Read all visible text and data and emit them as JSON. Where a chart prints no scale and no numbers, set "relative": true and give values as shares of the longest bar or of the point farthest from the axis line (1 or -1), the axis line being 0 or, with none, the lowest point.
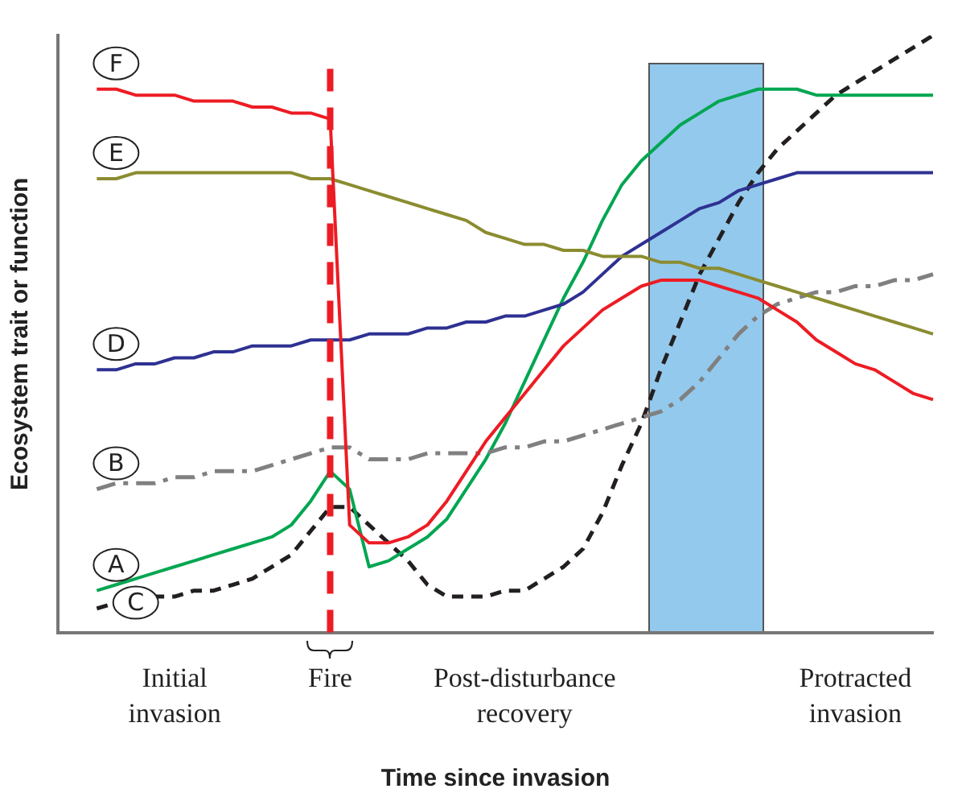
{
  "chart_data": {
    "type": "line",
    "relative": true,
    "xlabel": "Time since invasion",
    "ylabel": "Ecosystem trait or function",
    "legend": "left",
    "marker": "none",
    "categories": [
      null,
      null,
      null,
      null,
      null,
      null,
      "Initial invasion",
      null,
      null,
      null,
      null,
      null,
      null,
      null,
      "Fire",
      null,
      null,
      null,
      null,
      null,
      null,
      null,
      null,
      null,
      "Post-disturbance recovery",
      null,
      null,
      null,
      null,
      null,
      null,
      null,
      null,
      null,
      null,
      null,
      null,
      null,
      null,
      null,
      null,
      "Protracted invasion",
      null,
      null,
      null,
      null
    ],
    "series": [
      {
        "name": "F",
        "color": "#ed1c24",
        "values": [
          null,
          null,
          0.91,
          0.91,
          0.9,
          0.9,
          0.9,
          0.89,
          0.89,
          0.89,
          0.88,
          0.88,
          0.87,
          0.87,
          0.86,
          0.18,
          0.15,
          0.15,
          0.16,
          0.18,
          0.22,
          0.27,
          0.32,
          0.36,
          0.4,
          0.44,
          0.48,
          0.51,
          0.54,
          0.56,
          0.58,
          0.59,
          0.59,
          0.59,
          0.58,
          0.57,
          0.56,
          0.54,
          0.52,
          0.49,
          0.47,
          0.45,
          0.44,
          0.42,
          0.4,
          0.39
        ]
      },
      {
        "name": "E",
        "color": "#8a8c30",
        "values": [
          null,
          null,
          0.76,
          0.76,
          0.77,
          0.77,
          0.77,
          0.77,
          0.77,
          0.77,
          0.77,
          0.77,
          0.77,
          0.76,
          0.76,
          0.75,
          0.74,
          0.73,
          0.72,
          0.71,
          0.7,
          0.69,
          0.67,
          0.66,
          0.65,
          0.65,
          0.64,
          0.64,
          0.63,
          0.63,
          0.63,
          0.62,
          0.62,
          0.61,
          0.61,
          0.6,
          0.59,
          0.58,
          0.57,
          0.56,
          0.55,
          0.54,
          0.53,
          0.52,
          0.51,
          0.5
        ]
      },
      {
        "name": "D",
        "color": "#2e3192",
        "values": [
          null,
          null,
          0.44,
          0.44,
          0.45,
          0.45,
          0.46,
          0.46,
          0.47,
          0.47,
          0.48,
          0.48,
          0.48,
          0.49,
          0.49,
          0.49,
          0.5,
          0.5,
          0.5,
          0.51,
          0.51,
          0.52,
          0.52,
          0.53,
          0.53,
          0.54,
          0.55,
          0.57,
          0.6,
          0.63,
          0.65,
          0.67,
          0.69,
          0.71,
          0.72,
          0.74,
          0.75,
          0.76,
          0.77,
          0.77,
          0.77,
          0.77,
          0.77,
          0.77,
          0.77,
          0.77
        ]
      },
      {
        "name": "B",
        "color": "#808080",
        "line_style": "dashdot",
        "values": [
          null,
          null,
          0.24,
          0.25,
          0.25,
          0.25,
          0.26,
          0.26,
          0.27,
          0.27,
          0.27,
          0.28,
          0.29,
          0.3,
          0.31,
          0.31,
          0.29,
          0.29,
          0.29,
          0.3,
          0.3,
          0.3,
          0.3,
          0.31,
          0.31,
          0.32,
          0.32,
          0.33,
          0.34,
          0.35,
          0.36,
          0.37,
          0.39,
          0.42,
          0.46,
          0.5,
          0.53,
          0.55,
          0.56,
          0.57,
          0.57,
          0.58,
          0.58,
          0.59,
          0.59,
          0.6
        ]
      },
      {
        "name": "A",
        "color": "#00a651",
        "values": [
          null,
          null,
          0.07,
          0.08,
          0.09,
          0.1,
          0.11,
          0.12,
          0.13,
          0.14,
          0.15,
          0.16,
          0.18,
          0.22,
          0.27,
          0.24,
          0.11,
          0.12,
          0.14,
          0.16,
          0.19,
          0.24,
          0.29,
          0.35,
          0.42,
          0.49,
          0.56,
          0.62,
          0.69,
          0.75,
          0.79,
          0.82,
          0.85,
          0.87,
          0.89,
          0.9,
          0.91,
          0.91,
          0.91,
          0.9,
          0.9,
          0.9,
          0.9,
          0.9,
          0.9,
          0.9
        ]
      },
      {
        "name": "C",
        "color": "#231f20",
        "line_style": "dashed",
        "values": [
          null,
          null,
          0.04,
          0.05,
          0.05,
          0.06,
          0.06,
          0.07,
          0.07,
          0.08,
          0.09,
          0.11,
          0.13,
          0.17,
          0.21,
          0.21,
          0.18,
          0.15,
          0.12,
          0.08,
          0.06,
          0.06,
          0.06,
          0.07,
          0.07,
          0.09,
          0.11,
          0.14,
          0.2,
          0.28,
          0.35,
          0.44,
          0.52,
          0.6,
          0.66,
          0.72,
          0.77,
          0.81,
          0.84,
          0.87,
          0.9,
          0.92,
          0.94,
          0.96,
          0.98,
          1
        ]
      }
    ],
    "ref_lines": [
      {
        "axis": "x",
        "value": "Fire",
        "color": "#ed1c24",
        "line_style": "dashed"
      }
    ]
  }
}
